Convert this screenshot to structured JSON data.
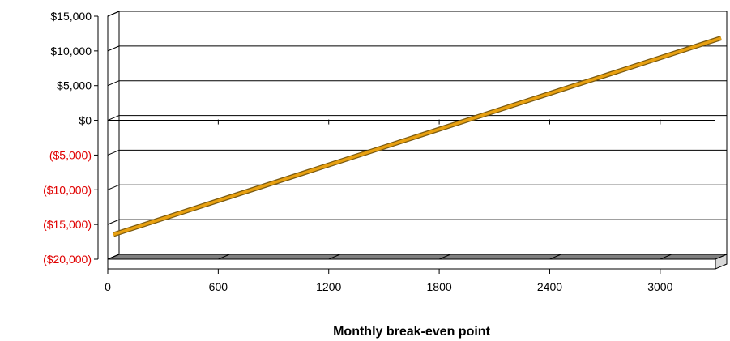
{
  "chart_data": {
    "type": "line",
    "title": "",
    "xlabel": "Monthly break-even point",
    "ylabel": "",
    "xlim": [
      0,
      3300
    ],
    "ylim": [
      -20000,
      15000
    ],
    "x_ticks": [
      0,
      600,
      1200,
      1800,
      2400,
      3000
    ],
    "x_tick_labels": [
      "0",
      "600",
      "1200",
      "1800",
      "2400",
      "3000"
    ],
    "y_ticks": [
      15000,
      10000,
      5000,
      0,
      -5000,
      -10000,
      -15000,
      -20000
    ],
    "y_tick_labels": [
      "$15,000",
      "$10,000",
      "$5,000",
      "$0",
      "($5,000)",
      "($10,000)",
      "($15,000)",
      "($20,000)"
    ],
    "grid": true,
    "legend": "none",
    "series": [
      {
        "x": [
          0,
          3300
        ],
        "values": [
          -16800,
          11500
        ],
        "color": "#e8a010"
      }
    ],
    "colors": {
      "positive_label": "#000000",
      "negative_label": "#e00000",
      "line": "#e8a010",
      "line_edge": "#7a5a10",
      "floor": "#808080"
    }
  }
}
